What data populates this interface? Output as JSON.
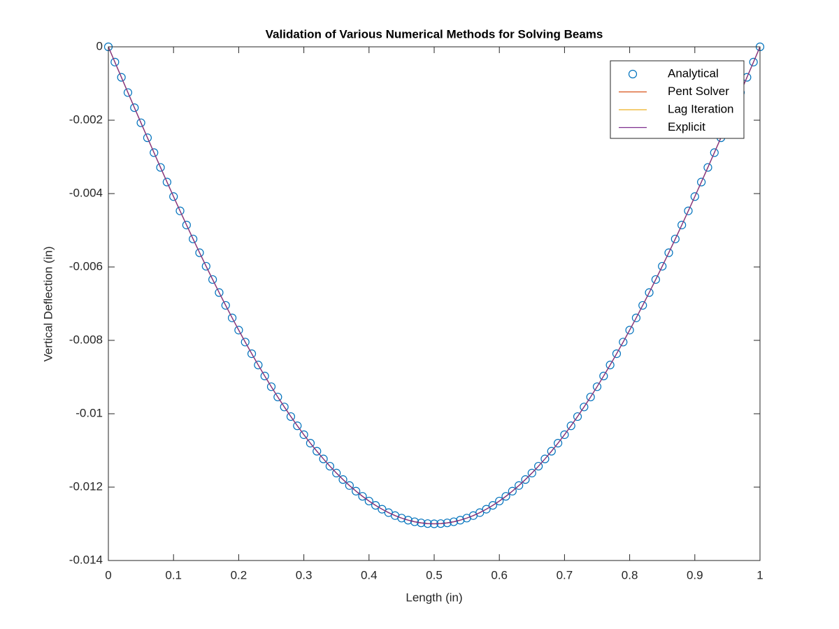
{
  "chart_data": {
    "type": "line",
    "title": "Validation of Various Numerical Methods for Solving Beams",
    "x_label": "Length (in)",
    "y_label": "Vertical Deflection (in)",
    "x": [
      0,
      0.01,
      0.02,
      0.03,
      0.04,
      0.05,
      0.06,
      0.07,
      0.08,
      0.09,
      0.1,
      0.11,
      0.12,
      0.13,
      0.14,
      0.15,
      0.16,
      0.17,
      0.18,
      0.19,
      0.2,
      0.21,
      0.22,
      0.23,
      0.24,
      0.25,
      0.26,
      0.27,
      0.28,
      0.29,
      0.3,
      0.31,
      0.32,
      0.33,
      0.34,
      0.35,
      0.36,
      0.37,
      0.38,
      0.39,
      0.4,
      0.41,
      0.42,
      0.43,
      0.44,
      0.45,
      0.46,
      0.47,
      0.48,
      0.49,
      0.5,
      0.51,
      0.52,
      0.53,
      0.54,
      0.55,
      0.56,
      0.57,
      0.58,
      0.59,
      0.6,
      0.61,
      0.62,
      0.63,
      0.64,
      0.65,
      0.66,
      0.67,
      0.68,
      0.69,
      0.7,
      0.71,
      0.72,
      0.73,
      0.74,
      0.75,
      0.76,
      0.77,
      0.78,
      0.79,
      0.8,
      0.81,
      0.82,
      0.83,
      0.84,
      0.85,
      0.86,
      0.87,
      0.88,
      0.89,
      0.9,
      0.91,
      0.92,
      0.93,
      0.94,
      0.95,
      0.96,
      0.97,
      0.98,
      0.99,
      1
    ],
    "series": [
      {
        "name": "Analytical",
        "color": "#0072bd",
        "style": "marker",
        "values": [
          0,
          -0.000416,
          -0.000831,
          -0.001246,
          -0.001659,
          -0.00207,
          -0.002479,
          -0.002884,
          -0.003287,
          -0.003686,
          -0.004081,
          -0.004471,
          -0.004857,
          -0.005237,
          -0.005612,
          -0.00598,
          -0.006342,
          -0.006698,
          -0.007046,
          -0.007388,
          -0.007721,
          -0.008046,
          -0.008364,
          -0.008672,
          -0.008972,
          -0.009263,
          -0.009544,
          -0.009815,
          -0.010077,
          -0.010329,
          -0.010571,
          -0.010802,
          -0.011022,
          -0.011231,
          -0.01143,
          -0.011617,
          -0.011793,
          -0.011957,
          -0.01211,
          -0.012251,
          -0.01238,
          -0.012497,
          -0.012602,
          -0.012695,
          -0.012776,
          -0.012844,
          -0.0129,
          -0.012944,
          -0.012975,
          -0.012994,
          -0.013,
          -0.012994,
          -0.012975,
          -0.012944,
          -0.0129,
          -0.012844,
          -0.012776,
          -0.012695,
          -0.012602,
          -0.012497,
          -0.01238,
          -0.012251,
          -0.01211,
          -0.011957,
          -0.011793,
          -0.011617,
          -0.01143,
          -0.011231,
          -0.011022,
          -0.010802,
          -0.010571,
          -0.010329,
          -0.010077,
          -0.009815,
          -0.009544,
          -0.009263,
          -0.008972,
          -0.008672,
          -0.008364,
          -0.008046,
          -0.007721,
          -0.007388,
          -0.007046,
          -0.006698,
          -0.006342,
          -0.00598,
          -0.005612,
          -0.005237,
          -0.004857,
          -0.004471,
          -0.004081,
          -0.003686,
          -0.003287,
          -0.002884,
          -0.002479,
          -0.00207,
          -0.001659,
          -0.001246,
          -0.000831,
          -0.000416,
          0
        ]
      },
      {
        "name": "Pent Solver",
        "color": "#d95319",
        "style": "line",
        "values": [
          0,
          -0.000416,
          -0.000831,
          -0.001246,
          -0.001659,
          -0.00207,
          -0.002479,
          -0.002884,
          -0.003287,
          -0.003686,
          -0.004081,
          -0.004471,
          -0.004857,
          -0.005237,
          -0.005612,
          -0.00598,
          -0.006342,
          -0.006698,
          -0.007046,
          -0.007388,
          -0.007721,
          -0.008046,
          -0.008364,
          -0.008672,
          -0.008972,
          -0.009263,
          -0.009544,
          -0.009815,
          -0.010077,
          -0.010329,
          -0.010571,
          -0.010802,
          -0.011022,
          -0.011231,
          -0.01143,
          -0.011617,
          -0.011793,
          -0.011957,
          -0.01211,
          -0.012251,
          -0.01238,
          -0.012497,
          -0.012602,
          -0.012695,
          -0.012776,
          -0.012844,
          -0.0129,
          -0.012944,
          -0.012975,
          -0.012994,
          -0.013,
          -0.012994,
          -0.012975,
          -0.012944,
          -0.0129,
          -0.012844,
          -0.012776,
          -0.012695,
          -0.012602,
          -0.012497,
          -0.01238,
          -0.012251,
          -0.01211,
          -0.011957,
          -0.011793,
          -0.011617,
          -0.01143,
          -0.011231,
          -0.011022,
          -0.010802,
          -0.010571,
          -0.010329,
          -0.010077,
          -0.009815,
          -0.009544,
          -0.009263,
          -0.008972,
          -0.008672,
          -0.008364,
          -0.008046,
          -0.007721,
          -0.007388,
          -0.007046,
          -0.006698,
          -0.006342,
          -0.00598,
          -0.005612,
          -0.005237,
          -0.004857,
          -0.004471,
          -0.004081,
          -0.003686,
          -0.003287,
          -0.002884,
          -0.002479,
          -0.00207,
          -0.001659,
          -0.001246,
          -0.000831,
          -0.000416,
          0
        ]
      },
      {
        "name": "Lag Iteration",
        "color": "#edb120",
        "style": "line",
        "values": [
          0,
          -0.000416,
          -0.000831,
          -0.001246,
          -0.001659,
          -0.00207,
          -0.002479,
          -0.002884,
          -0.003287,
          -0.003686,
          -0.004081,
          -0.004471,
          -0.004857,
          -0.005237,
          -0.005612,
          -0.00598,
          -0.006342,
          -0.006698,
          -0.007046,
          -0.007388,
          -0.007721,
          -0.008046,
          -0.008364,
          -0.008672,
          -0.008972,
          -0.009263,
          -0.009544,
          -0.009815,
          -0.010077,
          -0.010329,
          -0.010571,
          -0.010802,
          -0.011022,
          -0.011231,
          -0.01143,
          -0.011617,
          -0.011793,
          -0.011957,
          -0.01211,
          -0.012251,
          -0.01238,
          -0.012497,
          -0.012602,
          -0.012695,
          -0.012776,
          -0.012844,
          -0.0129,
          -0.012944,
          -0.012975,
          -0.012994,
          -0.013,
          -0.012994,
          -0.012975,
          -0.012944,
          -0.0129,
          -0.012844,
          -0.012776,
          -0.012695,
          -0.012602,
          -0.012497,
          -0.01238,
          -0.012251,
          -0.01211,
          -0.011957,
          -0.011793,
          -0.011617,
          -0.01143,
          -0.011231,
          -0.011022,
          -0.010802,
          -0.010571,
          -0.010329,
          -0.010077,
          -0.009815,
          -0.009544,
          -0.009263,
          -0.008972,
          -0.008672,
          -0.008364,
          -0.008046,
          -0.007721,
          -0.007388,
          -0.007046,
          -0.006698,
          -0.006342,
          -0.00598,
          -0.005612,
          -0.005237,
          -0.004857,
          -0.004471,
          -0.004081,
          -0.003686,
          -0.003287,
          -0.002884,
          -0.002479,
          -0.00207,
          -0.001659,
          -0.001246,
          -0.000831,
          -0.000416,
          0
        ]
      },
      {
        "name": "Explicit",
        "color": "#7e2f8e",
        "style": "line",
        "values": [
          0,
          -0.000416,
          -0.000831,
          -0.001246,
          -0.001659,
          -0.00207,
          -0.002479,
          -0.002884,
          -0.003287,
          -0.003686,
          -0.004081,
          -0.004471,
          -0.004857,
          -0.005237,
          -0.005612,
          -0.00598,
          -0.006342,
          -0.006698,
          -0.007046,
          -0.007388,
          -0.007721,
          -0.008046,
          -0.008364,
          -0.008672,
          -0.008972,
          -0.009263,
          -0.009544,
          -0.009815,
          -0.010077,
          -0.010329,
          -0.010571,
          -0.010802,
          -0.011022,
          -0.011231,
          -0.01143,
          -0.011617,
          -0.011793,
          -0.011957,
          -0.01211,
          -0.012251,
          -0.01238,
          -0.012497,
          -0.012602,
          -0.012695,
          -0.012776,
          -0.012844,
          -0.0129,
          -0.012944,
          -0.012975,
          -0.012994,
          -0.013,
          -0.012994,
          -0.012975,
          -0.012944,
          -0.0129,
          -0.012844,
          -0.012776,
          -0.012695,
          -0.012602,
          -0.012497,
          -0.01238,
          -0.012251,
          -0.01211,
          -0.011957,
          -0.011793,
          -0.011617,
          -0.01143,
          -0.011231,
          -0.011022,
          -0.010802,
          -0.010571,
          -0.010329,
          -0.010077,
          -0.009815,
          -0.009544,
          -0.009263,
          -0.008972,
          -0.008672,
          -0.008364,
          -0.008046,
          -0.007721,
          -0.007388,
          -0.007046,
          -0.006698,
          -0.006342,
          -0.00598,
          -0.005612,
          -0.005237,
          -0.004857,
          -0.004471,
          -0.004081,
          -0.003686,
          -0.003287,
          -0.002884,
          -0.002479,
          -0.00207,
          -0.001659,
          -0.001246,
          -0.000831,
          -0.000416,
          0
        ]
      }
    ],
    "xlim": [
      0,
      1
    ],
    "xticks": [
      0,
      0.1,
      0.2,
      0.3,
      0.4,
      0.5,
      0.6,
      0.7,
      0.8,
      0.9,
      1
    ],
    "ylim": [
      -0.014,
      0
    ],
    "yticks": [
      0,
      -0.002,
      -0.004,
      -0.006,
      -0.008,
      -0.01,
      -0.012,
      -0.014
    ],
    "grid": false,
    "legend": "northeast"
  }
}
